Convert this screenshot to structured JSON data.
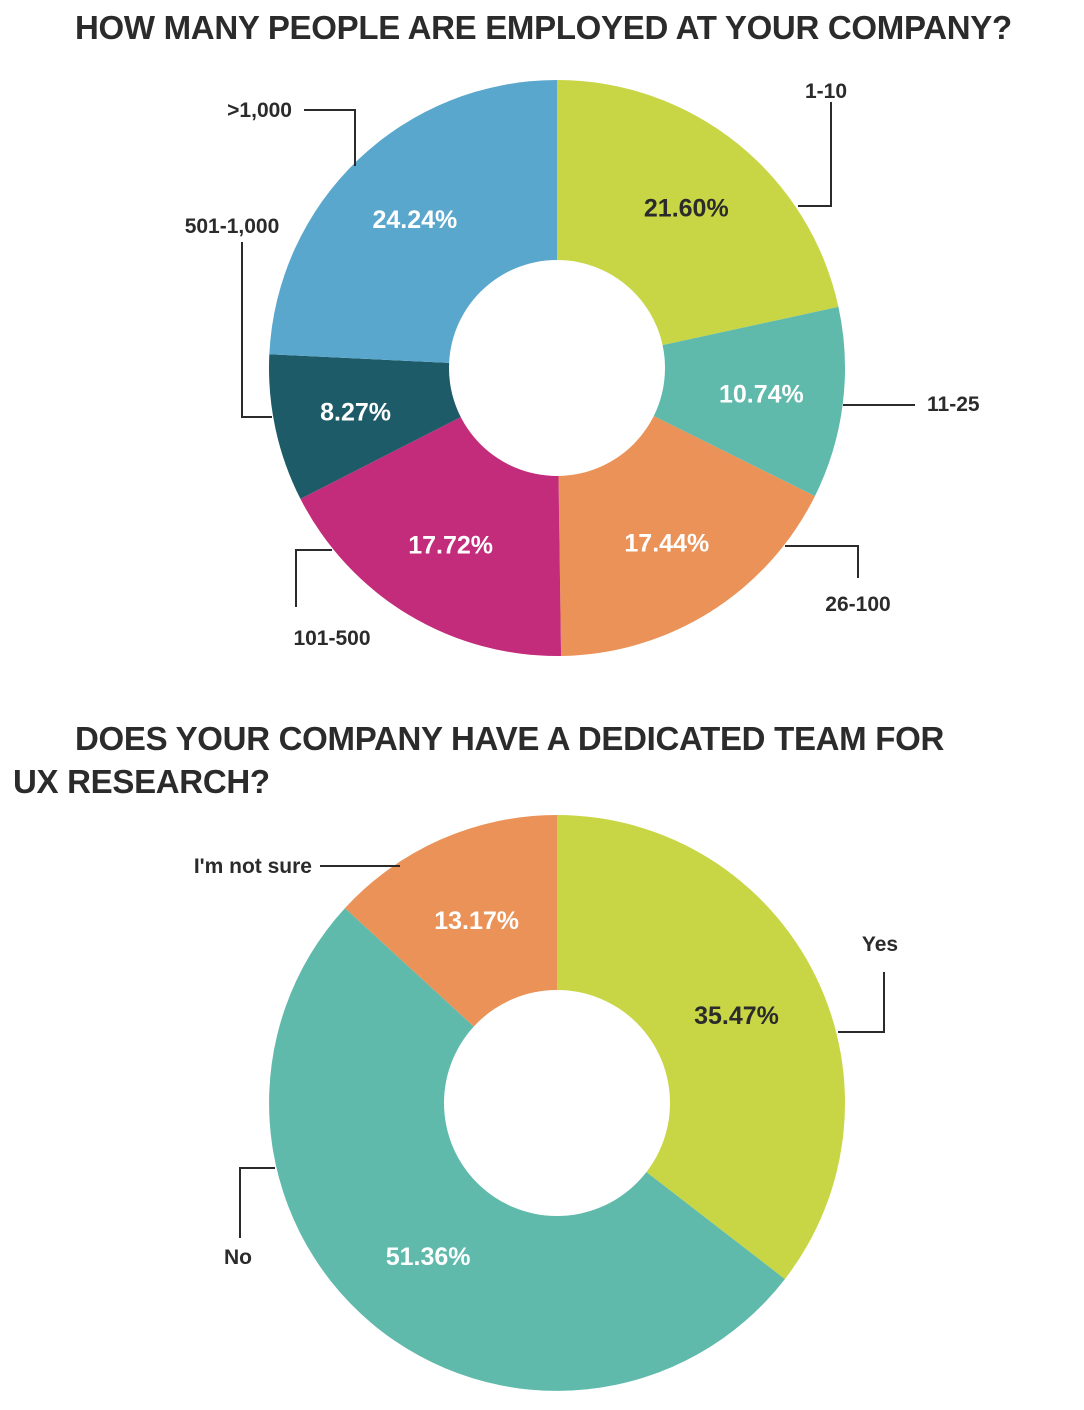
{
  "chart_data": [
    {
      "type": "pie",
      "title": "HOW MANY PEOPLE ARE EMPLOYED AT YOUR COMPANY?",
      "categories": [
        "1-10",
        "11-25",
        "26-100",
        "101-500",
        "501-1,000",
        ">1,000"
      ],
      "values": [
        21.6,
        10.74,
        17.44,
        17.72,
        8.27,
        24.24
      ],
      "value_labels": [
        "21.60%",
        "10.74%",
        "17.44%",
        "17.72%",
        "8.27%",
        "24.24%"
      ],
      "colors": [
        "#c8d646",
        "#5fbaab",
        "#ea9257",
        "#c32c7a",
        "#1e5b69",
        "#5aa7cd"
      ],
      "label_colors": [
        "#2b2b2b",
        "#ffffff",
        "#ffffff",
        "#ffffff",
        "#ffffff",
        "#ffffff"
      ],
      "style": "donut"
    },
    {
      "type": "pie",
      "title_line1": "DOES YOUR COMPANY HAVE A DEDICATED TEAM FOR",
      "title_line2": "UX RESEARCH?",
      "categories": [
        "Yes",
        "No",
        "I'm not sure"
      ],
      "values": [
        35.47,
        51.36,
        13.17
      ],
      "value_labels": [
        "35.47%",
        "51.36%",
        "13.17%"
      ],
      "colors": [
        "#c8d646",
        "#5fbaab",
        "#ea9257"
      ],
      "label_colors": [
        "#2b2b2b",
        "#ffffff",
        "#ffffff"
      ],
      "style": "donut"
    }
  ]
}
